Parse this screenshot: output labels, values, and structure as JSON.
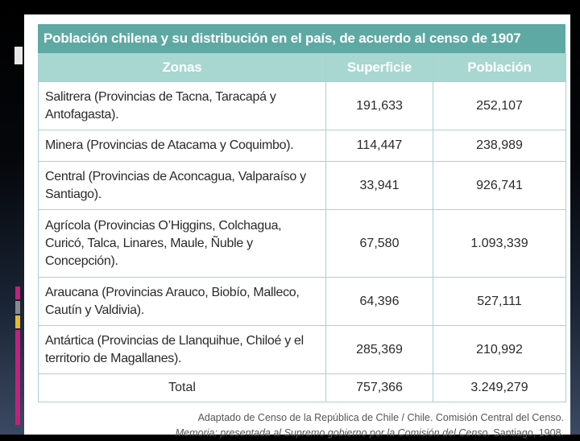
{
  "table": {
    "title": "Población chilena y su distribución en el país, de acuerdo al censo de 1907",
    "headers": [
      "Zonas",
      "Superficie",
      "Población"
    ],
    "rows": [
      {
        "zone": "Salitrera (Provincias de Tacna, Taracapá y Antofagasta).",
        "superficie": "191,633",
        "poblacion": "252,107"
      },
      {
        "zone": "Minera (Provincias de Atacama y Coquimbo).",
        "superficie": "114,447",
        "poblacion": "238,989"
      },
      {
        "zone": "Central (Provincias de Aconcagua, Valparaíso y Santiago).",
        "superficie": "33,941",
        "poblacion": "926,741"
      },
      {
        "zone": "Agrícola (Provincias O’Higgins, Colchagua, Curicó, Talca, Linares, Maule, Ñuble y Concepción).",
        "superficie": "67,580",
        "poblacion": "1.093,339"
      },
      {
        "zone": "Araucana (Provincias Arauco, Biobío, Malleco, Cautín y Valdivia).",
        "superficie": "64,396",
        "poblacion": "527,111"
      },
      {
        "zone": "Antártica (Provincias de Llanquihue, Chiloé y el territorio de Magallanes).",
        "superficie": "285,369",
        "poblacion": "210,992"
      }
    ],
    "total": {
      "label": "Total",
      "superficie": "757,366",
      "poblacion": "3.249,279"
    }
  },
  "source": {
    "line1": "Adaptado de Censo de la República de Chile / Chile. Comisión Central del Censo.",
    "line2_italic": "Memoria: presentada al Supremo gobierno por la Comisión del Censo.",
    "line2_rest": " Santiago, 1908."
  }
}
